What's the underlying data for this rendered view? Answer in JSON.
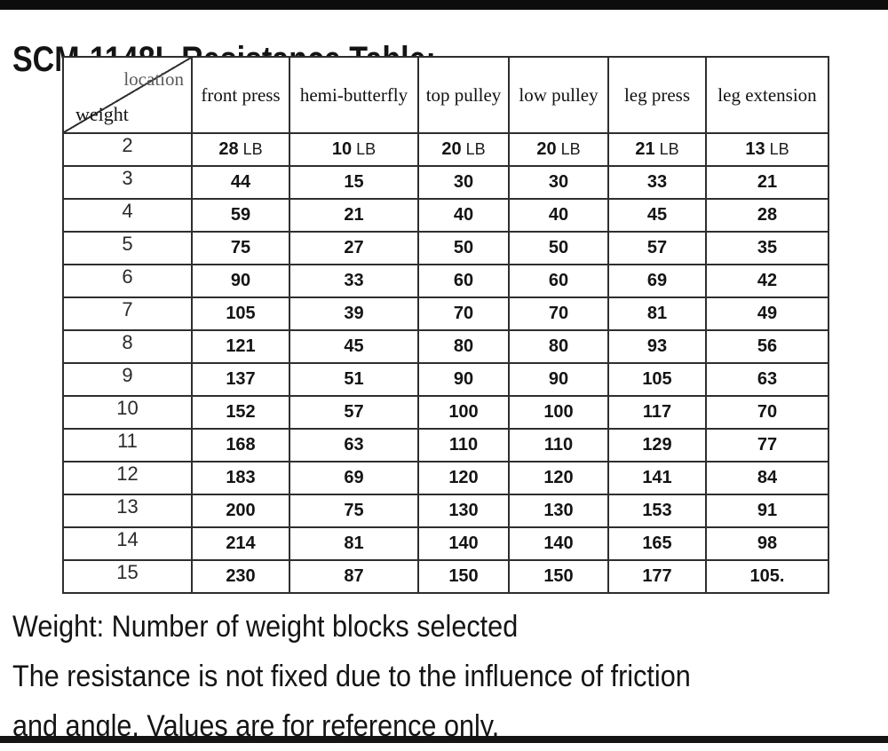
{
  "title": "SCM-1148L Resistance Table:",
  "table": {
    "corner": {
      "top_right": "location",
      "bottom_left": "weight"
    },
    "columns": [
      "front press",
      "hemi-butterfly",
      "top pulley",
      "low pulley",
      "leg press",
      "leg extension"
    ],
    "unit": "LB",
    "rows": [
      {
        "weight": "2",
        "show_unit": true,
        "values": [
          "28",
          "10",
          "20",
          "20",
          "21",
          "13"
        ]
      },
      {
        "weight": "3",
        "show_unit": false,
        "values": [
          "44",
          "15",
          "30",
          "30",
          "33",
          "21"
        ]
      },
      {
        "weight": "4",
        "show_unit": false,
        "values": [
          "59",
          "21",
          "40",
          "40",
          "45",
          "28"
        ]
      },
      {
        "weight": "5",
        "show_unit": false,
        "values": [
          "75",
          "27",
          "50",
          "50",
          "57",
          "35"
        ]
      },
      {
        "weight": "6",
        "show_unit": false,
        "values": [
          "90",
          "33",
          "60",
          "60",
          "69",
          "42"
        ]
      },
      {
        "weight": "7",
        "show_unit": false,
        "values": [
          "105",
          "39",
          "70",
          "70",
          "81",
          "49"
        ]
      },
      {
        "weight": "8",
        "show_unit": false,
        "values": [
          "121",
          "45",
          "80",
          "80",
          "93",
          "56"
        ]
      },
      {
        "weight": "9",
        "show_unit": false,
        "values": [
          "137",
          "51",
          "90",
          "90",
          "105",
          "63"
        ]
      },
      {
        "weight": "10",
        "show_unit": false,
        "values": [
          "152",
          "57",
          "100",
          "100",
          "117",
          "70"
        ]
      },
      {
        "weight": "11",
        "show_unit": false,
        "values": [
          "168",
          "63",
          "110",
          "110",
          "129",
          "77"
        ]
      },
      {
        "weight": "12",
        "show_unit": false,
        "values": [
          "183",
          "69",
          "120",
          "120",
          "141",
          "84"
        ]
      },
      {
        "weight": "13",
        "show_unit": false,
        "values": [
          "200",
          "75",
          "130",
          "130",
          "153",
          "91"
        ]
      },
      {
        "weight": "14",
        "show_unit": false,
        "values": [
          "214",
          "81",
          "140",
          "140",
          "165",
          "98"
        ]
      },
      {
        "weight": "15",
        "show_unit": false,
        "values": [
          "230",
          "87",
          "150",
          "150",
          "177",
          "105."
        ]
      }
    ]
  },
  "notes": [
    "Weight: Number of weight blocks selected",
    "The resistance is not fixed due to the influence of friction",
    "and angle. Values are for reference only."
  ],
  "colors": {
    "grid": "#2e2e2e",
    "location_label": "#58595b",
    "text": "#141414",
    "bars": "#0d0d0d"
  }
}
